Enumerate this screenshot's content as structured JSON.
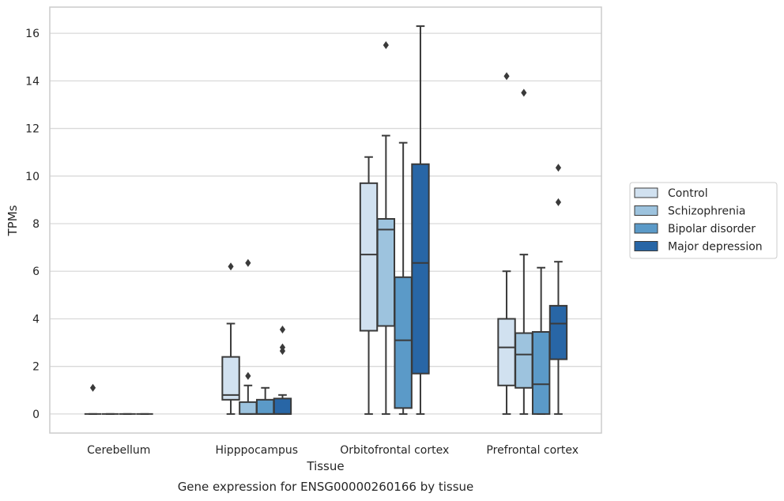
{
  "chart_data": {
    "type": "box",
    "xlabel": "Tissue",
    "ylabel": "TPMs",
    "caption": "Gene expression for ENSG00000260166 by tissue",
    "ylim": [
      -0.8,
      17.1
    ],
    "yticks": [
      0,
      2,
      4,
      6,
      8,
      10,
      12,
      14,
      16
    ],
    "grid": "horizontal",
    "legend_position": "right",
    "categories": [
      "Cerebellum",
      "Hipppocampus",
      "Orbitofrontal cortex",
      "Prefrontal cortex"
    ],
    "series": [
      {
        "name": "Control",
        "color": "#d1e1f0",
        "boxes": [
          {
            "category": "Cerebellum",
            "whislo": 0,
            "q1": 0,
            "med": 0,
            "q3": 0,
            "whishi": 0,
            "fliers": [
              1.1
            ]
          },
          {
            "category": "Hipppocampus",
            "whislo": 0,
            "q1": 0.6,
            "med": 0.8,
            "q3": 2.4,
            "whishi": 3.8,
            "fliers": [
              6.2
            ]
          },
          {
            "category": "Orbitofrontal cortex",
            "whislo": 0,
            "q1": 3.5,
            "med": 6.7,
            "q3": 9.7,
            "whishi": 10.8,
            "fliers": []
          },
          {
            "category": "Prefrontal cortex",
            "whislo": 0,
            "q1": 1.2,
            "med": 2.8,
            "q3": 4.0,
            "whishi": 6.0,
            "fliers": [
              14.2
            ]
          }
        ]
      },
      {
        "name": "Schizophrenia",
        "color": "#9dc3de",
        "boxes": [
          {
            "category": "Cerebellum",
            "whislo": 0,
            "q1": 0,
            "med": 0,
            "q3": 0,
            "whishi": 0,
            "fliers": []
          },
          {
            "category": "Hipppocampus",
            "whislo": 0,
            "q1": 0,
            "med": 0,
            "q3": 0.5,
            "whishi": 1.2,
            "fliers": [
              1.6,
              6.35
            ]
          },
          {
            "category": "Orbitofrontal cortex",
            "whislo": 0,
            "q1": 3.7,
            "med": 7.75,
            "q3": 8.2,
            "whishi": 11.7,
            "fliers": [
              15.5
            ]
          },
          {
            "category": "Prefrontal cortex",
            "whislo": 0,
            "q1": 1.1,
            "med": 2.5,
            "q3": 3.4,
            "whishi": 6.7,
            "fliers": [
              13.5
            ]
          }
        ]
      },
      {
        "name": "Bipolar disorder",
        "color": "#5b9ac8",
        "boxes": [
          {
            "category": "Cerebellum",
            "whislo": 0,
            "q1": 0,
            "med": 0,
            "q3": 0,
            "whishi": 0,
            "fliers": []
          },
          {
            "category": "Hipppocampus",
            "whislo": 0,
            "q1": 0,
            "med": 0,
            "q3": 0.6,
            "whishi": 1.1,
            "fliers": []
          },
          {
            "category": "Orbitofrontal cortex",
            "whislo": 0,
            "q1": 0.25,
            "med": 3.1,
            "q3": 5.75,
            "whishi": 11.4,
            "fliers": []
          },
          {
            "category": "Prefrontal cortex",
            "whislo": 0,
            "q1": 0,
            "med": 1.25,
            "q3": 3.45,
            "whishi": 6.15,
            "fliers": []
          }
        ]
      },
      {
        "name": "Major depression",
        "color": "#2866a6",
        "boxes": [
          {
            "category": "Cerebellum",
            "whislo": 0,
            "q1": 0,
            "med": 0,
            "q3": 0,
            "whishi": 0,
            "fliers": []
          },
          {
            "category": "Hipppocampus",
            "whislo": 0,
            "q1": 0,
            "med": 0,
            "q3": 0.65,
            "whishi": 0.8,
            "fliers": [
              2.65,
              2.8,
              3.55
            ]
          },
          {
            "category": "Orbitofrontal cortex",
            "whislo": 0,
            "q1": 1.7,
            "med": 6.35,
            "q3": 10.5,
            "whishi": 16.3,
            "fliers": []
          },
          {
            "category": "Prefrontal cortex",
            "whislo": 0,
            "q1": 2.3,
            "med": 3.8,
            "q3": 4.55,
            "whishi": 6.4,
            "fliers": [
              8.9,
              10.35
            ]
          }
        ]
      }
    ]
  }
}
